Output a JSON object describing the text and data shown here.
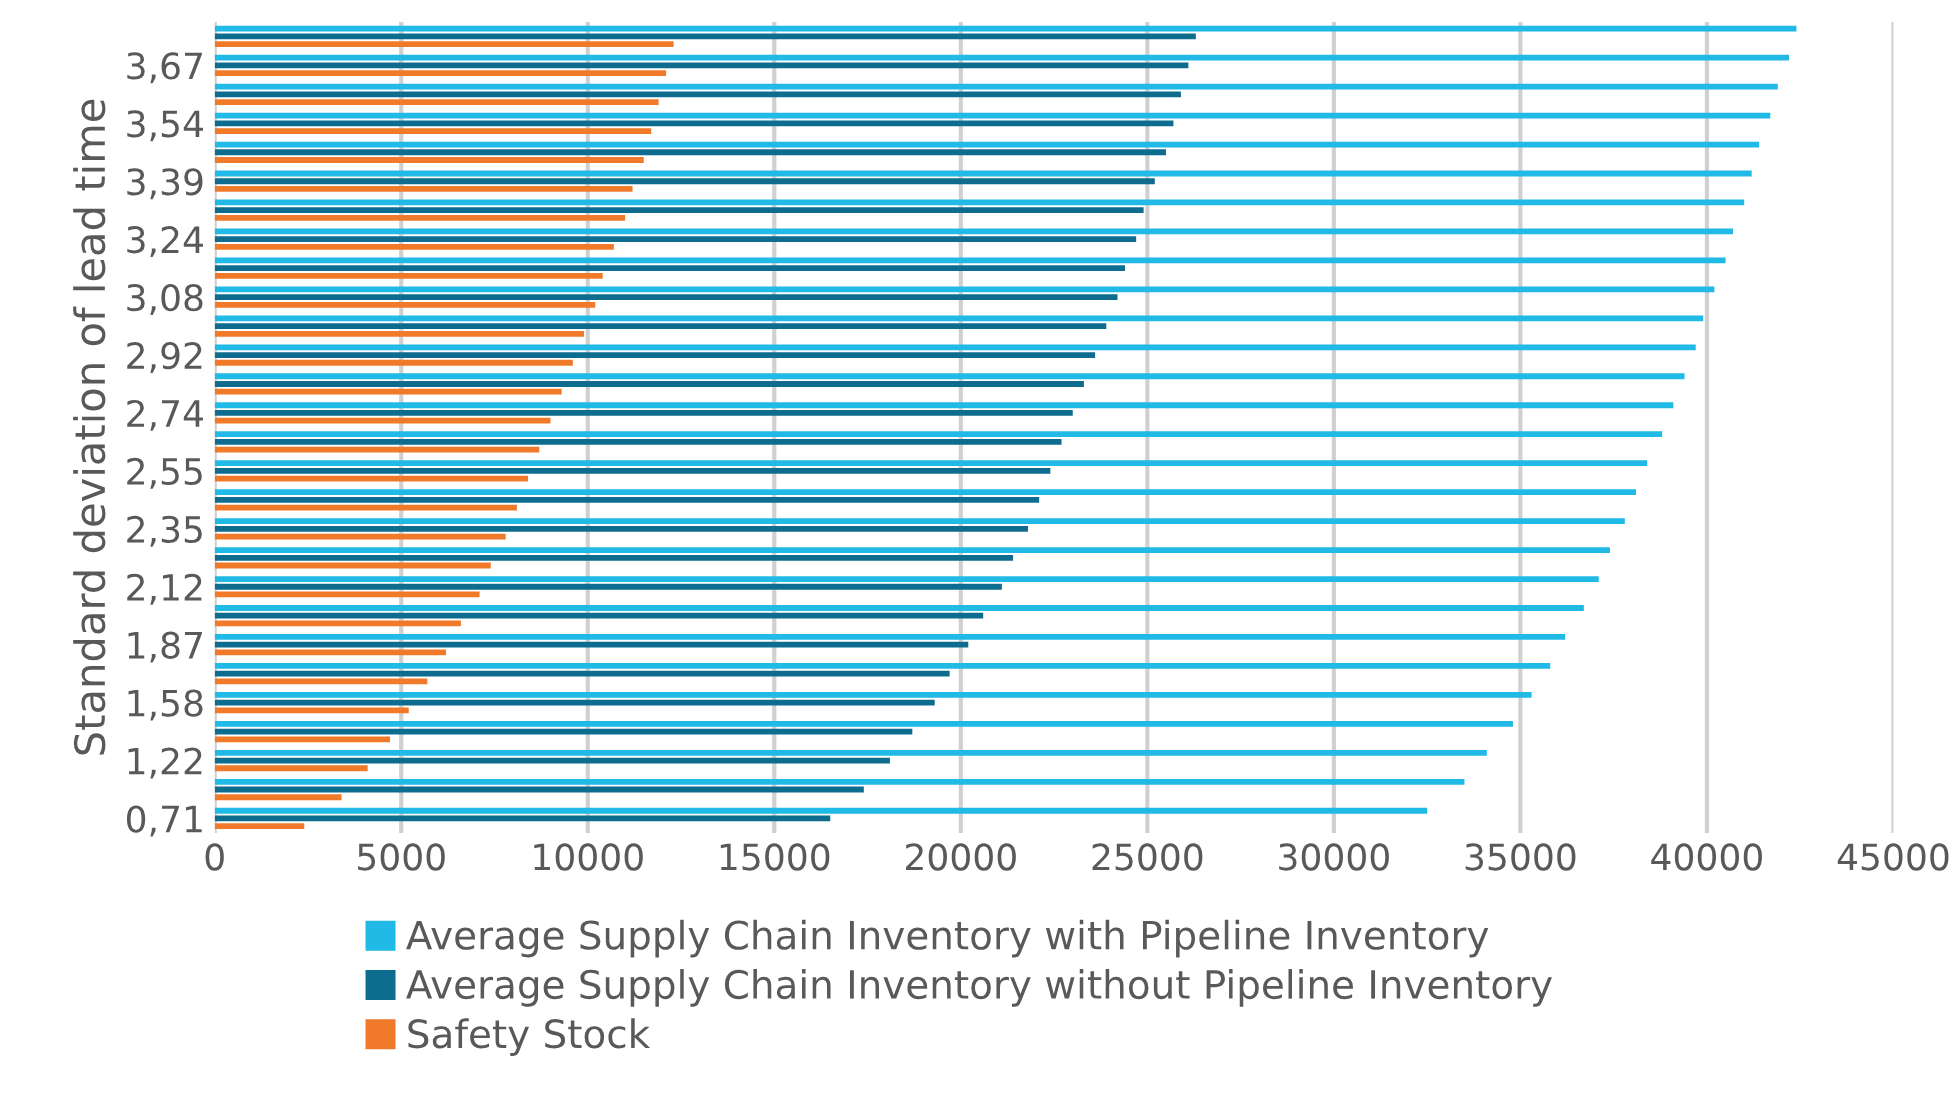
{
  "chart_data": {
    "type": "bar",
    "orientation": "horizontal",
    "ylabel": "Standard deviation of lead time",
    "categories": [
      null,
      "3,67",
      null,
      "3,54",
      null,
      "3,39",
      null,
      "3,24",
      null,
      "3,08",
      null,
      "2,92",
      null,
      "2,74",
      null,
      "2,55",
      null,
      "2,35",
      null,
      "2,12",
      null,
      "1,87",
      null,
      "1,58",
      null,
      "1,22",
      null,
      "0,71"
    ],
    "series": [
      {
        "name": "Average Supply Chain Inventory with Pipeline Inventory",
        "color": "#21b9e6",
        "values": [
          42400,
          42200,
          41900,
          41700,
          41400,
          41200,
          41000,
          40700,
          40500,
          40200,
          39900,
          39700,
          39400,
          39100,
          38800,
          38400,
          38100,
          37800,
          37400,
          37100,
          36700,
          36200,
          35800,
          35300,
          34800,
          34100,
          33500,
          32500
        ]
      },
      {
        "name": "Average Supply Chain Inventory without Pipeline Inventory",
        "color": "#0e6d8f",
        "values": [
          26300,
          26100,
          25900,
          25700,
          25500,
          25200,
          24900,
          24700,
          24400,
          24200,
          23900,
          23600,
          23300,
          23000,
          22700,
          22400,
          22100,
          21800,
          21400,
          21100,
          20600,
          20200,
          19700,
          19300,
          18700,
          18100,
          17400,
          16500
        ]
      },
      {
        "name": "Safety Stock",
        "color": "#f07a2a",
        "values": [
          12300,
          12100,
          11900,
          11700,
          11500,
          11200,
          11000,
          10700,
          10400,
          10200,
          9900,
          9600,
          9300,
          9000,
          8700,
          8400,
          8100,
          7800,
          7400,
          7100,
          6600,
          6200,
          5700,
          5200,
          4700,
          4100,
          3400,
          2400
        ]
      }
    ],
    "xlim": [
      0,
      45000
    ],
    "xticks": [
      0,
      5000,
      10000,
      15000,
      20000,
      25000,
      30000,
      35000,
      40000,
      45000
    ],
    "grid": "x",
    "legend": "bottom"
  }
}
